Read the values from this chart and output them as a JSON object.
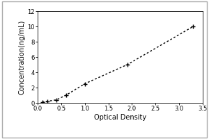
{
  "x_data": [
    0.1,
    0.2,
    0.4,
    0.6,
    1.0,
    1.9,
    3.3
  ],
  "y_data": [
    0.1,
    0.2,
    0.4,
    1.0,
    2.5,
    5.0,
    10.0
  ],
  "xlabel": "Optical Density",
  "ylabel": "Concentration(ng/mL)",
  "xlim": [
    0,
    3.5
  ],
  "ylim": [
    0,
    12
  ],
  "xticks": [
    0,
    0.5,
    1.0,
    1.5,
    2.0,
    2.5,
    3.0,
    3.5
  ],
  "yticks": [
    0,
    2,
    4,
    6,
    8,
    10,
    12
  ],
  "marker": "+",
  "marker_color": "black",
  "line_color": "black",
  "background_color": "#ffffff",
  "plot_background": "#ffffff",
  "marker_size": 5,
  "line_width": 1.0,
  "xlabel_fontsize": 7,
  "ylabel_fontsize": 7,
  "tick_fontsize": 6,
  "border_color": "#aaaaaa"
}
